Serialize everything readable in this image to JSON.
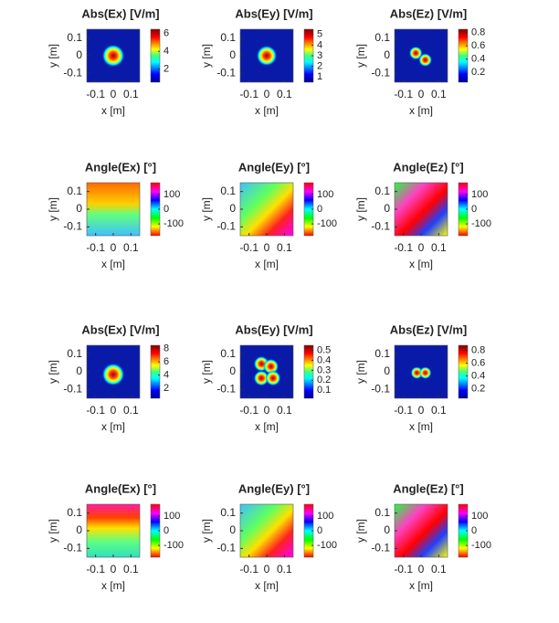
{
  "chart_data": [
    {
      "type": "heatmap",
      "title": "Abs(Ex) [V/m]",
      "xlabel": "x [m]",
      "ylabel": "y [m]",
      "xlim": [
        -0.15,
        0.15
      ],
      "ylim": [
        -0.15,
        0.15
      ],
      "xticks": [
        -0.1,
        0,
        0.1
      ],
      "yticks": [
        -0.1,
        0,
        0.1
      ],
      "colormap": "jet",
      "clim": [
        0.5,
        6.5
      ],
      "cticks": [
        2,
        4,
        6
      ]
    },
    {
      "type": "heatmap",
      "title": "Abs(Ey) [V/m]",
      "xlabel": "x [m]",
      "ylabel": "y [m]",
      "xlim": [
        -0.15,
        0.15
      ],
      "ylim": [
        -0.15,
        0.15
      ],
      "xticks": [
        -0.1,
        0,
        0.1
      ],
      "yticks": [
        -0.1,
        0,
        0.1
      ],
      "colormap": "jet",
      "clim": [
        0.5,
        5.5
      ],
      "cticks": [
        1,
        2,
        3,
        4,
        5
      ]
    },
    {
      "type": "heatmap",
      "title": "Abs(Ez) [V/m]",
      "xlabel": "x [m]",
      "ylabel": "y [m]",
      "xlim": [
        -0.15,
        0.15
      ],
      "ylim": [
        -0.15,
        0.15
      ],
      "xticks": [
        -0.1,
        0,
        0.1
      ],
      "yticks": [
        -0.1,
        0,
        0.1
      ],
      "colormap": "jet",
      "clim": [
        0.05,
        0.85
      ],
      "cticks": [
        0.2,
        0.4,
        0.6,
        0.8
      ]
    },
    {
      "type": "heatmap",
      "title": "Angle(Ex) [°]",
      "xlabel": "x [m]",
      "ylabel": "y [m]",
      "xlim": [
        -0.15,
        0.15
      ],
      "ylim": [
        -0.15,
        0.15
      ],
      "xticks": [
        -0.1,
        0,
        0.1
      ],
      "yticks": [
        -0.1,
        0,
        0.1
      ],
      "colormap": "hsv",
      "clim": [
        -180,
        180
      ],
      "cticks": [
        -100,
        0,
        100
      ]
    },
    {
      "type": "heatmap",
      "title": "Angle(Ey) [°]",
      "xlabel": "x [m]",
      "ylabel": "y [m]",
      "xlim": [
        -0.15,
        0.15
      ],
      "ylim": [
        -0.15,
        0.15
      ],
      "xticks": [
        -0.1,
        0,
        0.1
      ],
      "yticks": [
        -0.1,
        0,
        0.1
      ],
      "colormap": "hsv",
      "clim": [
        -180,
        180
      ],
      "cticks": [
        -100,
        0,
        100
      ]
    },
    {
      "type": "heatmap",
      "title": "Angle(Ez) [°]",
      "xlabel": "x [m]",
      "ylabel": "y [m]",
      "xlim": [
        -0.15,
        0.15
      ],
      "ylim": [
        -0.15,
        0.15
      ],
      "xticks": [
        -0.1,
        0,
        0.1
      ],
      "yticks": [
        -0.1,
        0,
        0.1
      ],
      "colormap": "hsv",
      "clim": [
        -180,
        180
      ],
      "cticks": [
        -100,
        0,
        100
      ]
    },
    {
      "type": "heatmap",
      "title": "Abs(Ex) [V/m]",
      "xlabel": "x [m]",
      "ylabel": "y [m]",
      "xlim": [
        -0.15,
        0.15
      ],
      "ylim": [
        -0.15,
        0.15
      ],
      "xticks": [
        -0.1,
        0,
        0.1
      ],
      "yticks": [
        -0.1,
        0,
        0.1
      ],
      "colormap": "jet",
      "clim": [
        0.5,
        8.5
      ],
      "cticks": [
        2,
        4,
        6,
        8
      ]
    },
    {
      "type": "heatmap",
      "title": "Abs(Ey) [V/m]",
      "xlabel": "x [m]",
      "ylabel": "y [m]",
      "xlim": [
        -0.15,
        0.15
      ],
      "ylim": [
        -0.15,
        0.15
      ],
      "xticks": [
        -0.1,
        0,
        0.1
      ],
      "yticks": [
        -0.1,
        0,
        0.1
      ],
      "colormap": "jet",
      "clim": [
        0.02,
        0.55
      ],
      "cticks": [
        0.1,
        0.2,
        0.3,
        0.4,
        0.5
      ]
    },
    {
      "type": "heatmap",
      "title": "Abs(Ez) [V/m]",
      "xlabel": "x [m]",
      "ylabel": "y [m]",
      "xlim": [
        -0.15,
        0.15
      ],
      "ylim": [
        -0.15,
        0.15
      ],
      "xticks": [
        -0.1,
        0,
        0.1
      ],
      "yticks": [
        -0.1,
        0,
        0.1
      ],
      "colormap": "jet",
      "clim": [
        0.05,
        0.88
      ],
      "cticks": [
        0.2,
        0.4,
        0.6,
        0.8
      ]
    },
    {
      "type": "heatmap",
      "title": "Angle(Ex) [°]",
      "xlabel": "x [m]",
      "ylabel": "y [m]",
      "xlim": [
        -0.15,
        0.15
      ],
      "ylim": [
        -0.15,
        0.15
      ],
      "xticks": [
        -0.1,
        0,
        0.1
      ],
      "yticks": [
        -0.1,
        0,
        0.1
      ],
      "colormap": "hsv",
      "clim": [
        -180,
        180
      ],
      "cticks": [
        -100,
        0,
        100
      ]
    },
    {
      "type": "heatmap",
      "title": "Angle(Ey) [°]",
      "xlabel": "x [m]",
      "ylabel": "y [m]",
      "xlim": [
        -0.15,
        0.15
      ],
      "ylim": [
        -0.15,
        0.15
      ],
      "xticks": [
        -0.1,
        0,
        0.1
      ],
      "yticks": [
        -0.1,
        0,
        0.1
      ],
      "colormap": "hsv",
      "clim": [
        -180,
        180
      ],
      "cticks": [
        -100,
        0,
        100
      ]
    },
    {
      "type": "heatmap",
      "title": "Angle(Ez) [°]",
      "xlabel": "x [m]",
      "ylabel": "y [m]",
      "xlim": [
        -0.15,
        0.15
      ],
      "ylim": [
        -0.15,
        0.15
      ],
      "xticks": [
        -0.1,
        0,
        0.1
      ],
      "yticks": [
        -0.1,
        0,
        0.1
      ],
      "colormap": "hsv",
      "clim": [
        -180,
        180
      ],
      "cticks": [
        -100,
        0,
        100
      ]
    }
  ]
}
